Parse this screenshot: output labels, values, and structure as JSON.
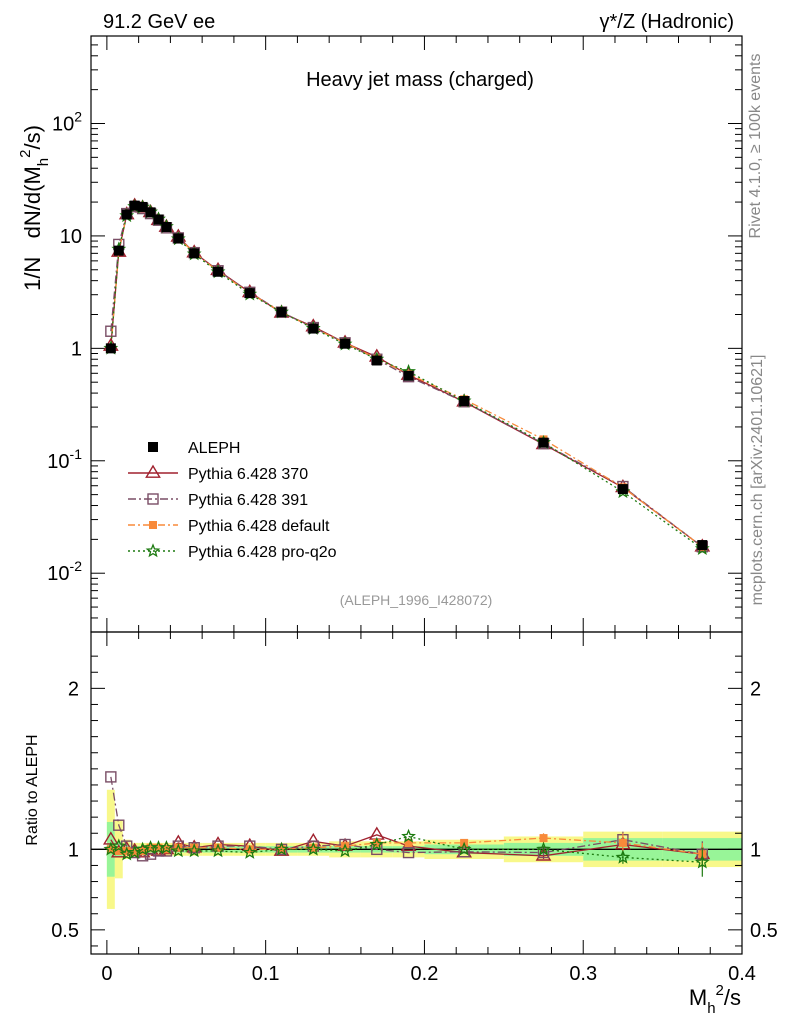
{
  "header": {
    "left": "91.2 GeV ee",
    "right": "γ*/Z (Hadronic)"
  },
  "side_labels": {
    "top": "Rivet 4.1.0, ≥ 100k events",
    "bottom": "mcplots.cern.ch [arXiv:2401.10621]"
  },
  "colors": {
    "data": "#000000",
    "p370": "#a0212e",
    "p391": "#7a4e66",
    "pdefault": "#f88a3a",
    "pq2o": "#1d7a10",
    "band_inner": "#98f598",
    "band_outer": "#f8f88a",
    "note": "#999999"
  },
  "chart_data": [
    {
      "type": "line",
      "title": "Heavy jet mass (charged)",
      "note": "(ALEPH_1996_I428072)",
      "ylabel": "1/N  dN/d(M_h^2/s)",
      "yscale": "log",
      "ylim": [
        0.003,
        600
      ],
      "xlim": [
        -0.01,
        0.4
      ],
      "y_tick_labels": [
        "10^-2",
        "10^-1",
        "1",
        "10",
        "10^2"
      ],
      "x": [
        0.0025,
        0.0075,
        0.0125,
        0.0175,
        0.0225,
        0.0275,
        0.0325,
        0.0375,
        0.045,
        0.055,
        0.07,
        0.09,
        0.11,
        0.13,
        0.15,
        0.17,
        0.19,
        0.225,
        0.275,
        0.325,
        0.375
      ],
      "series": [
        {
          "name": "ALEPH",
          "key": "data",
          "marker": "square",
          "values": [
            1.0,
            7.4,
            15.5,
            18.6,
            18.1,
            16.2,
            14.0,
            12.0,
            9.5,
            7.0,
            4.8,
            3.1,
            2.1,
            1.5,
            1.1,
            0.78,
            0.57,
            0.34,
            0.145,
            0.056,
            0.0178
          ]
        },
        {
          "name": "Pythia 6.428 370",
          "key": "p370",
          "marker": "triangle",
          "dash": "",
          "values": [
            1.05,
            7.2,
            15.5,
            18.5,
            17.8,
            16.2,
            13.8,
            12.0,
            9.8,
            7.1,
            4.95,
            3.15,
            2.07,
            1.56,
            1.12,
            0.84,
            0.58,
            0.335,
            0.14,
            0.058,
            0.0172
          ]
        },
        {
          "name": "Pythia 6.428 391",
          "key": "p391",
          "marker": "open-square",
          "dash": "8,3,2,3",
          "values": [
            1.42,
            8.4,
            15.8,
            18.2,
            17.5,
            15.8,
            13.8,
            11.8,
            9.6,
            7.1,
            4.9,
            3.15,
            2.1,
            1.53,
            1.12,
            0.8,
            0.56,
            0.335,
            0.142,
            0.059,
            0.0172
          ]
        },
        {
          "name": "Pythia 6.428 default",
          "key": "pdefault",
          "marker": "filled-square",
          "dash": "7,3,2,3",
          "values": [
            1.0,
            7.3,
            15.4,
            18.3,
            17.9,
            16.3,
            14.2,
            12.0,
            9.6,
            7.1,
            4.85,
            3.1,
            2.1,
            1.52,
            1.12,
            0.81,
            0.59,
            0.352,
            0.155,
            0.058,
            0.0172
          ]
        },
        {
          "name": "Pythia 6.428 pro-q2o",
          "key": "pq2o",
          "marker": "star",
          "dash": "2,3",
          "values": [
            1.0,
            7.6,
            15.1,
            18.2,
            18.0,
            16.3,
            14.1,
            12.1,
            9.4,
            6.9,
            4.78,
            3.03,
            2.1,
            1.5,
            1.09,
            0.8,
            0.62,
            0.34,
            0.145,
            0.053,
            0.0165
          ]
        }
      ]
    },
    {
      "type": "line",
      "ylabel": "Ratio to ALEPH",
      "xlabel": "M_h^2/s",
      "ylim": [
        0.35,
        2.35
      ],
      "xlim": [
        -0.01,
        0.4
      ],
      "y_tick_labels": [
        "0.5",
        "1",
        "2"
      ],
      "x_tick_labels": [
        "0",
        "0.1",
        "0.2",
        "0.3",
        "0.4"
      ],
      "bin_edges": [
        0.0,
        0.005,
        0.01,
        0.015,
        0.02,
        0.025,
        0.03,
        0.035,
        0.04,
        0.05,
        0.06,
        0.08,
        0.1,
        0.12,
        0.14,
        0.16,
        0.18,
        0.2,
        0.25,
        0.3,
        0.35,
        0.4
      ],
      "band_inner": [
        0.17,
        0.05,
        0.03,
        0.02,
        0.02,
        0.02,
        0.02,
        0.02,
        0.02,
        0.02,
        0.02,
        0.02,
        0.02,
        0.02,
        0.02,
        0.02,
        0.02,
        0.03,
        0.04,
        0.07,
        0.07
      ],
      "band_outer": [
        0.37,
        0.18,
        0.06,
        0.04,
        0.04,
        0.04,
        0.04,
        0.04,
        0.04,
        0.04,
        0.04,
        0.04,
        0.04,
        0.04,
        0.05,
        0.05,
        0.05,
        0.06,
        0.08,
        0.11,
        0.11
      ],
      "series": [
        {
          "name": "Pythia 6.428 370",
          "key": "p370",
          "errors": [
            0,
            0,
            0,
            0,
            0,
            0,
            0,
            0,
            0,
            0,
            0,
            0,
            0,
            0,
            0,
            0,
            0,
            0,
            0.02,
            0.04,
            0.04
          ],
          "values": [
            1.06,
            0.98,
            1.0,
            0.99,
            0.98,
            1.0,
            0.99,
            1.0,
            1.04,
            1.01,
            1.03,
            1.02,
            0.99,
            1.05,
            1.02,
            1.09,
            1.02,
            0.98,
            0.96,
            1.03,
            0.97
          ]
        },
        {
          "name": "Pythia 6.428 391",
          "key": "p391",
          "errors": [
            0,
            0,
            0,
            0,
            0,
            0,
            0,
            0,
            0,
            0,
            0,
            0,
            0,
            0,
            0,
            0,
            0,
            0,
            0.02,
            0.05,
            0.08
          ],
          "values": [
            1.45,
            1.15,
            1.02,
            0.98,
            0.96,
            0.97,
            0.99,
            0.99,
            1.02,
            1.01,
            1.02,
            1.02,
            1.0,
            1.02,
            1.03,
            1.0,
            0.98,
            0.985,
            0.98,
            1.06,
            0.97
          ]
        },
        {
          "name": "Pythia 6.428 default",
          "key": "pdefault",
          "errors": [
            0,
            0,
            0,
            0,
            0,
            0,
            0,
            0,
            0,
            0,
            0,
            0,
            0,
            0,
            0,
            0,
            0,
            0,
            0.03,
            0.06,
            0.07
          ],
          "values": [
            1.0,
            0.99,
            0.99,
            0.98,
            0.99,
            1.01,
            1.01,
            1.0,
            1.01,
            1.01,
            1.01,
            1.0,
            1.0,
            1.01,
            1.02,
            1.04,
            1.04,
            1.04,
            1.07,
            1.04,
            0.97
          ]
        },
        {
          "name": "Pythia 6.428 pro-q2o",
          "key": "pq2o",
          "errors": [
            0,
            0,
            0,
            0,
            0,
            0,
            0,
            0,
            0,
            0,
            0,
            0,
            0,
            0,
            0,
            0,
            0,
            0,
            0.02,
            0.04,
            0.09
          ],
          "values": [
            1.0,
            1.02,
            0.97,
            0.98,
            1.0,
            1.01,
            1.01,
            1.01,
            0.99,
            0.99,
            0.99,
            0.98,
            1.0,
            1.0,
            0.99,
            1.03,
            1.08,
            1.0,
            1.0,
            0.95,
            0.92
          ]
        }
      ]
    }
  ]
}
